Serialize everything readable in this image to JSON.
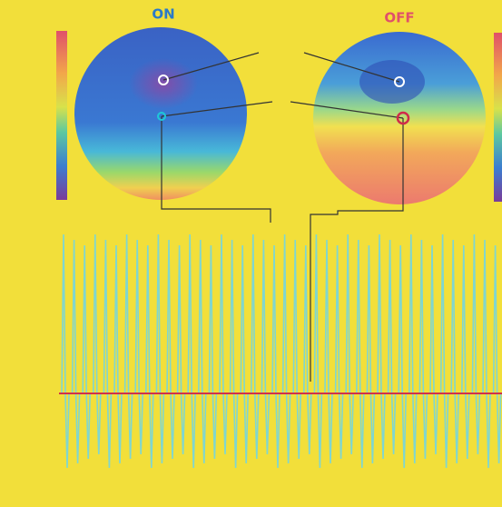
{
  "panels": [
    {
      "title": "ON"
    },
    {
      "title": "OFF"
    }
  ]
}
